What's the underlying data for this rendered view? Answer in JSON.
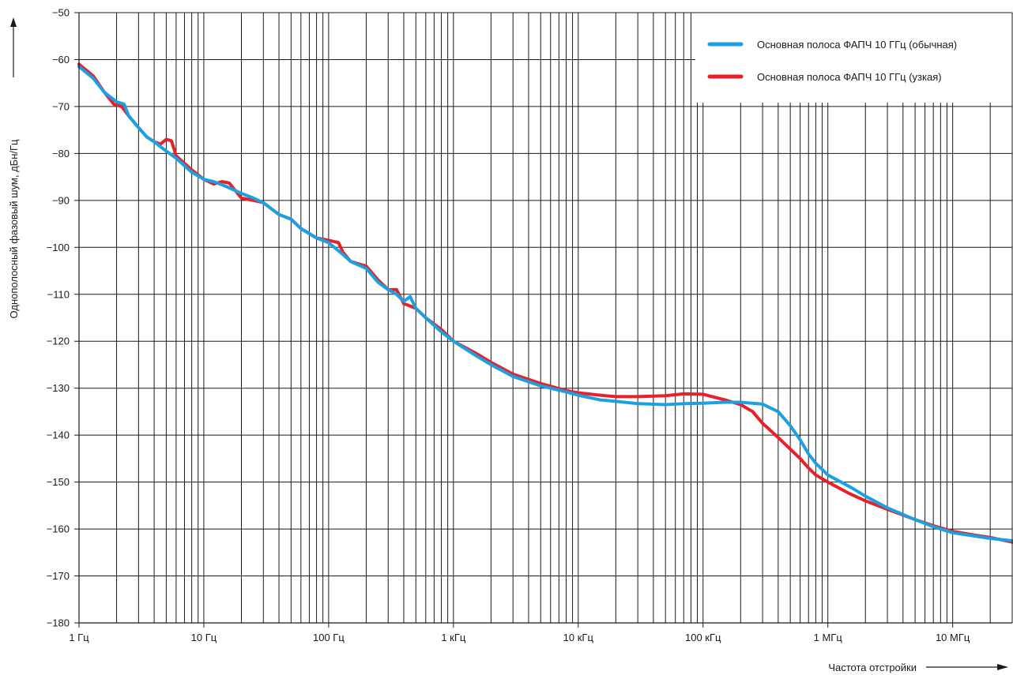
{
  "chart_data": {
    "type": "line",
    "title": "",
    "xlabel": "Частота отстройки",
    "ylabel": "Однополосный фазовый шум, дБн/Гц",
    "x_scale": "log",
    "xlim": [
      1,
      30000000
    ],
    "ylim": [
      -180,
      -50
    ],
    "grid": true,
    "legend_position": "top-right",
    "x_ticks": [
      {
        "value": 1,
        "label": "1 Гц"
      },
      {
        "value": 10,
        "label": "10 Гц"
      },
      {
        "value": 100,
        "label": "100 Гц"
      },
      {
        "value": 1000,
        "label": "1 кГц"
      },
      {
        "value": 10000,
        "label": "10 кГц"
      },
      {
        "value": 100000,
        "label": "100 кГц"
      },
      {
        "value": 1000000,
        "label": "1 МГц"
      },
      {
        "value": 10000000,
        "label": "10 МГц"
      }
    ],
    "y_ticks": [
      {
        "value": -50,
        "label": "−50"
      },
      {
        "value": -60,
        "label": "−60"
      },
      {
        "value": -70,
        "label": "−70"
      },
      {
        "value": -80,
        "label": "−80"
      },
      {
        "value": -90,
        "label": "−90"
      },
      {
        "value": -100,
        "label": "−100"
      },
      {
        "value": -110,
        "label": "−110"
      },
      {
        "value": -120,
        "label": "−120"
      },
      {
        "value": -130,
        "label": "−130"
      },
      {
        "value": -140,
        "label": "−140"
      },
      {
        "value": -150,
        "label": "−150"
      },
      {
        "value": -160,
        "label": "−160"
      },
      {
        "value": -170,
        "label": "−170"
      },
      {
        "value": -180,
        "label": "−180"
      }
    ],
    "series": [
      {
        "name": "Основная полоса ФАПЧ 10 ГГц (обычная)",
        "color": "#1ba1e2",
        "points": [
          [
            1,
            -61.5
          ],
          [
            1.3,
            -64
          ],
          [
            1.6,
            -67
          ],
          [
            2,
            -69
          ],
          [
            2.3,
            -69.5
          ],
          [
            2.5,
            -72
          ],
          [
            3,
            -74.5
          ],
          [
            3.5,
            -76.5
          ],
          [
            4,
            -77.5
          ],
          [
            5,
            -79.5
          ],
          [
            6,
            -81
          ],
          [
            8,
            -84
          ],
          [
            10,
            -85.5
          ],
          [
            12,
            -86
          ],
          [
            15,
            -87
          ],
          [
            20,
            -88.5
          ],
          [
            25,
            -89.5
          ],
          [
            30,
            -90.5
          ],
          [
            40,
            -93
          ],
          [
            50,
            -94
          ],
          [
            60,
            -96
          ],
          [
            80,
            -98
          ],
          [
            100,
            -99
          ],
          [
            130,
            -101.5
          ],
          [
            150,
            -103
          ],
          [
            200,
            -104.5
          ],
          [
            250,
            -107.5
          ],
          [
            300,
            -109
          ],
          [
            350,
            -110
          ],
          [
            400,
            -111.5
          ],
          [
            450,
            -110.5
          ],
          [
            500,
            -113
          ],
          [
            600,
            -115
          ],
          [
            800,
            -118
          ],
          [
            1000,
            -120
          ],
          [
            1500,
            -123
          ],
          [
            2000,
            -125
          ],
          [
            3000,
            -127.5
          ],
          [
            5000,
            -129.5
          ],
          [
            8000,
            -130.8
          ],
          [
            10000,
            -131.5
          ],
          [
            15000,
            -132.5
          ],
          [
            20000,
            -132.8
          ],
          [
            30000,
            -133.3
          ],
          [
            50000,
            -133.5
          ],
          [
            70000,
            -133.3
          ],
          [
            100000,
            -133.2
          ],
          [
            150000,
            -133
          ],
          [
            200000,
            -133
          ],
          [
            300000,
            -133.4
          ],
          [
            400000,
            -135
          ],
          [
            500000,
            -138
          ],
          [
            600000,
            -141
          ],
          [
            700000,
            -144
          ],
          [
            800000,
            -146
          ],
          [
            1000000,
            -148.5
          ],
          [
            1500000,
            -151
          ],
          [
            2000000,
            -153
          ],
          [
            3000000,
            -155.5
          ],
          [
            5000000,
            -158
          ],
          [
            7000000,
            -159.5
          ],
          [
            10000000,
            -160.8
          ],
          [
            15000000,
            -161.5
          ],
          [
            20000000,
            -162
          ],
          [
            30000000,
            -162.5
          ]
        ]
      },
      {
        "name": "Основная полоса ФАПЧ 10 ГГц (узкая)",
        "color": "#e8202a",
        "points": [
          [
            1,
            -61
          ],
          [
            1.3,
            -63.5
          ],
          [
            1.6,
            -67
          ],
          [
            1.9,
            -69.5
          ],
          [
            2.2,
            -70
          ],
          [
            2.5,
            -72
          ],
          [
            3,
            -74.5
          ],
          [
            3.5,
            -76.5
          ],
          [
            4,
            -77.5
          ],
          [
            4.5,
            -78
          ],
          [
            5,
            -77
          ],
          [
            5.5,
            -77.3
          ],
          [
            6,
            -80.5
          ],
          [
            8,
            -83.5
          ],
          [
            10,
            -85.5
          ],
          [
            12,
            -86.5
          ],
          [
            14,
            -86
          ],
          [
            16,
            -86.3
          ],
          [
            18,
            -88
          ],
          [
            20,
            -89.5
          ],
          [
            25,
            -90
          ],
          [
            30,
            -90.5
          ],
          [
            40,
            -93
          ],
          [
            50,
            -94
          ],
          [
            60,
            -96
          ],
          [
            80,
            -98
          ],
          [
            100,
            -98.5
          ],
          [
            120,
            -99
          ],
          [
            130,
            -101
          ],
          [
            150,
            -103
          ],
          [
            200,
            -104
          ],
          [
            250,
            -107
          ],
          [
            300,
            -109
          ],
          [
            350,
            -109
          ],
          [
            400,
            -112
          ],
          [
            450,
            -112.5
          ],
          [
            500,
            -113
          ],
          [
            600,
            -115
          ],
          [
            800,
            -117.5
          ],
          [
            1000,
            -120
          ],
          [
            1500,
            -122.5
          ],
          [
            2000,
            -124.5
          ],
          [
            3000,
            -127
          ],
          [
            5000,
            -129
          ],
          [
            8000,
            -130.5
          ],
          [
            10000,
            -131
          ],
          [
            15000,
            -131.5
          ],
          [
            20000,
            -131.8
          ],
          [
            30000,
            -131.8
          ],
          [
            50000,
            -131.6
          ],
          [
            70000,
            -131.2
          ],
          [
            100000,
            -131.3
          ],
          [
            150000,
            -132.5
          ],
          [
            200000,
            -133.5
          ],
          [
            250000,
            -135
          ],
          [
            300000,
            -137.5
          ],
          [
            400000,
            -140.5
          ],
          [
            500000,
            -143
          ],
          [
            600000,
            -145
          ],
          [
            700000,
            -147
          ],
          [
            800000,
            -148.5
          ],
          [
            1000000,
            -150
          ],
          [
            1500000,
            -152.5
          ],
          [
            2000000,
            -154
          ],
          [
            3000000,
            -155.8
          ],
          [
            5000000,
            -158
          ],
          [
            7000000,
            -159.3
          ],
          [
            10000000,
            -160.5
          ],
          [
            15000000,
            -161.3
          ],
          [
            20000000,
            -161.8
          ],
          [
            30000000,
            -162.8
          ]
        ]
      }
    ]
  }
}
